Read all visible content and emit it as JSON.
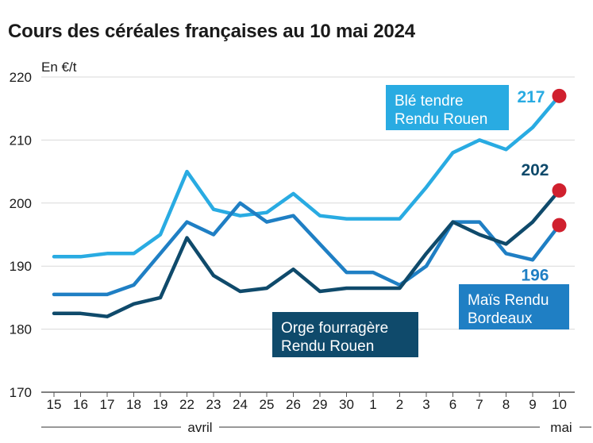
{
  "title": "Cours des céréales françaises au 10 mai 2024",
  "chart_data": {
    "type": "line",
    "ylabel": "En €/t",
    "ylim": [
      170,
      220
    ],
    "yticks": [
      170,
      180,
      190,
      200,
      210,
      220
    ],
    "grid": "horizontal",
    "categories": [
      "15",
      "16",
      "17",
      "18",
      "19",
      "22",
      "23",
      "24",
      "25",
      "26",
      "29",
      "30",
      "1",
      "2",
      "3",
      "6",
      "7",
      "8",
      "9",
      "10"
    ],
    "months": [
      {
        "label": "avril",
        "from": "15",
        "to": "30"
      },
      {
        "label": "mai",
        "from": "1",
        "to": "10"
      }
    ],
    "series": [
      {
        "key": "ble",
        "name_lines": [
          "Blé tendre",
          "Rendu Rouen"
        ],
        "color": "#29abe2",
        "values": [
          191.5,
          191.5,
          192,
          192,
          195,
          205,
          199,
          198,
          198.5,
          201.5,
          198,
          197.5,
          197.5,
          197.5,
          202.5,
          208,
          210,
          208.5,
          212,
          217
        ],
        "end_value": "217"
      },
      {
        "key": "mais",
        "name_lines": [
          "Maïs Rendu",
          "Bordeaux"
        ],
        "color": "#1f7fc4",
        "values": [
          185.5,
          185.5,
          185.5,
          187,
          192,
          197,
          195,
          200,
          197,
          198,
          193.5,
          189,
          189,
          187,
          190,
          197,
          197,
          192,
          191,
          196.5
        ],
        "end_value": "196"
      },
      {
        "key": "orge",
        "name_lines": [
          "Orge fourragère",
          "Rendu Rouen"
        ],
        "color": "#0f4a6b",
        "values": [
          182.5,
          182.5,
          182,
          184,
          185,
          194.5,
          188.5,
          186,
          186.5,
          189.5,
          186,
          186.5,
          186.5,
          186.5,
          192,
          197,
          195,
          193.5,
          197,
          202
        ],
        "end_value": "202"
      }
    ],
    "marker_color": "#d0202e"
  }
}
